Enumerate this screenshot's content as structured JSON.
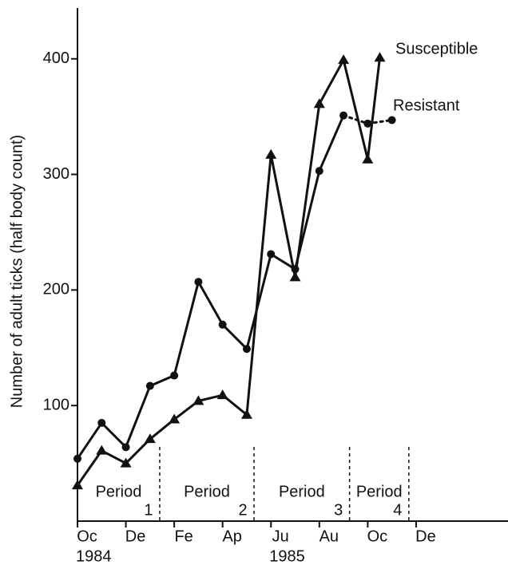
{
  "chart_data": {
    "type": "line",
    "ylabel": "Number of adult ticks (half body count)",
    "x_unit": "months",
    "xlim": [
      0,
      17.8
    ],
    "xticks": [
      {
        "value": 0,
        "label": "Oc"
      },
      {
        "value": 2,
        "label": "De"
      },
      {
        "value": 4,
        "label": "Fe"
      },
      {
        "value": 6,
        "label": "Ap"
      },
      {
        "value": 8,
        "label": "Ju"
      },
      {
        "value": 10,
        "label": "Au"
      },
      {
        "value": 12,
        "label": "Oc"
      },
      {
        "value": 14,
        "label": "De"
      }
    ],
    "year_labels": [
      {
        "value": 0,
        "label": "1984"
      },
      {
        "value": 8,
        "label": "1985"
      }
    ],
    "ylim": [
      0,
      444
    ],
    "yticks": [
      100,
      200,
      300,
      400
    ],
    "grid": false,
    "periods": [
      {
        "label": "Period",
        "number": "1",
        "end": 3.4
      },
      {
        "label": "Period",
        "number": "2",
        "end": 7.3
      },
      {
        "label": "Period",
        "number": "3",
        "end": 11.25
      },
      {
        "label": "Period",
        "number": "4",
        "end": 13.7
      }
    ],
    "series": [
      {
        "name": "Susceptible",
        "color": "#111111",
        "marker": "triangle",
        "x": [
          0,
          1,
          2,
          3,
          4,
          5,
          6,
          7,
          8,
          9,
          10,
          11,
          12,
          12.5
        ],
        "values": [
          31,
          61,
          50,
          71,
          88,
          104,
          109,
          92,
          317,
          211,
          361,
          399,
          313,
          401
        ]
      },
      {
        "name": "Resistant",
        "color": "#111111",
        "marker": "circle",
        "dotted_from_index": 11,
        "x": [
          0,
          1,
          2,
          3,
          4,
          5,
          6,
          7,
          8,
          9,
          10,
          11,
          12,
          13
        ],
        "values": [
          54,
          85,
          64,
          117,
          126,
          207,
          170,
          149,
          231,
          218,
          303,
          351,
          344,
          347
        ]
      }
    ]
  }
}
